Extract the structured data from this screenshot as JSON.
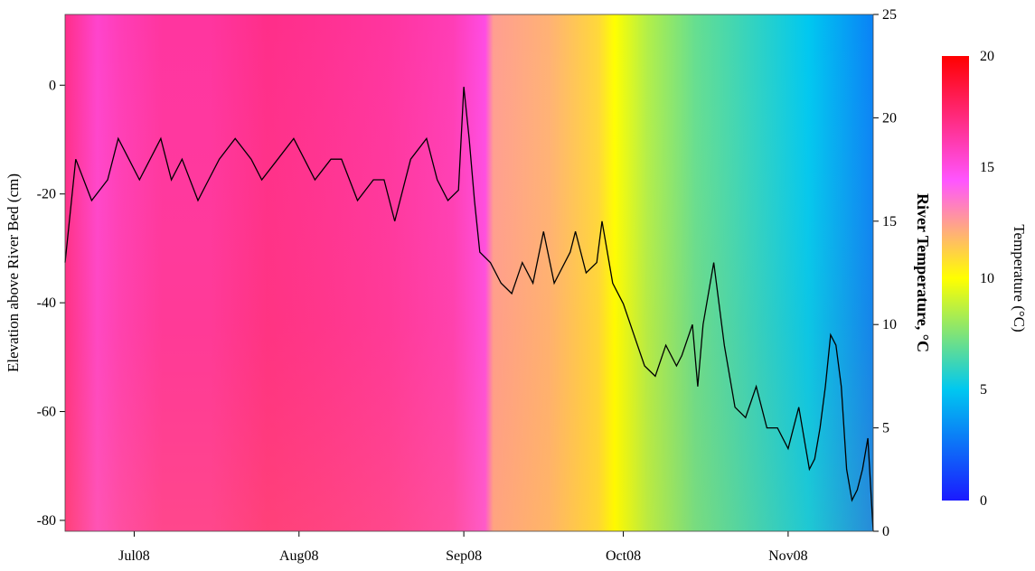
{
  "chart_data": {
    "type": "heatmap",
    "heatmap": {
      "x_months": [
        "Jul08",
        "Aug08",
        "Sep08",
        "Oct08",
        "Nov08"
      ],
      "y_range": [
        -82,
        13
      ],
      "description_none": "",
      "column_temperature_profile": [
        [
          0.0,
          17.0
        ],
        [
          0.04,
          15.5
        ],
        [
          0.07,
          16.0
        ],
        [
          0.12,
          16.5
        ],
        [
          0.18,
          16.5
        ],
        [
          0.25,
          17.0
        ],
        [
          0.32,
          16.8
        ],
        [
          0.4,
          16.5
        ],
        [
          0.48,
          16.0
        ],
        [
          0.52,
          15.0
        ],
        [
          0.53,
          12.5
        ],
        [
          0.6,
          12.0
        ],
        [
          0.66,
          11.0
        ],
        [
          0.68,
          10.0
        ],
        [
          0.72,
          8.5
        ],
        [
          0.78,
          7.0
        ],
        [
          0.85,
          6.0
        ],
        [
          0.92,
          5.0
        ],
        [
          1.0,
          3.0
        ]
      ]
    },
    "left_axis": {
      "label": "Elevation above River Bed (cm)",
      "ticks": [
        0,
        -20,
        -40,
        -60,
        -80
      ],
      "tick_labels": [
        "0",
        "-20",
        "-40",
        "-60",
        "-80"
      ],
      "range": [
        -82,
        13
      ]
    },
    "right_axis": {
      "label": "River Temperature, °C",
      "ticks": [
        0,
        5,
        10,
        15,
        20,
        25
      ],
      "tick_labels": [
        "0",
        "5",
        "10",
        "15",
        "20",
        "25"
      ],
      "range": [
        0,
        25
      ]
    },
    "x_axis": {
      "tick_labels": [
        "Jul08",
        "Aug08",
        "Sep08",
        "Oct08",
        "Nov08"
      ],
      "tick_positions_days": [
        13,
        44,
        75,
        105,
        136
      ],
      "range_days": [
        0,
        152
      ]
    },
    "colorbar": {
      "label": "Temperature (°C)",
      "ticks": [
        0,
        5,
        10,
        15,
        20
      ],
      "tick_labels": [
        "0",
        "5",
        "10",
        "15",
        "20"
      ],
      "range": [
        0,
        20
      ]
    },
    "river_temperature_series": {
      "x_days": [
        0,
        2,
        5,
        8,
        10,
        12,
        14,
        16,
        18,
        20,
        22,
        25,
        27,
        29,
        32,
        35,
        37,
        40,
        43,
        45,
        47,
        50,
        52,
        55,
        58,
        60,
        62,
        65,
        68,
        70,
        72,
        74,
        75,
        76,
        77,
        78,
        80,
        82,
        84,
        86,
        88,
        90,
        92,
        93,
        95,
        96,
        98,
        100,
        101,
        103,
        105,
        107,
        109,
        111,
        113,
        115,
        116,
        118,
        119,
        120,
        122,
        124,
        126,
        128,
        130,
        132,
        134,
        136,
        138,
        140,
        141,
        142,
        143,
        144,
        145,
        146,
        147,
        148,
        149,
        150,
        151,
        152
      ],
      "y_values": [
        13,
        18,
        16,
        17,
        19,
        18,
        17,
        18,
        19,
        17,
        18,
        16,
        17,
        18,
        19,
        18,
        17,
        18,
        19,
        18,
        17,
        18,
        18,
        16,
        17,
        17,
        15,
        18,
        19,
        17,
        16,
        16.5,
        21.5,
        19,
        16,
        13.5,
        13,
        12,
        11.5,
        13,
        12,
        14.5,
        12,
        12.5,
        13.5,
        14.5,
        12.5,
        13,
        15,
        12,
        11,
        9.5,
        8,
        7.5,
        9,
        8,
        8.5,
        10,
        7,
        10,
        13,
        9,
        6,
        5.5,
        7,
        5,
        5,
        4,
        6,
        3,
        3.5,
        5,
        7,
        9.5,
        9,
        7,
        3,
        1.5,
        2,
        3,
        4.5,
        0
      ]
    }
  }
}
